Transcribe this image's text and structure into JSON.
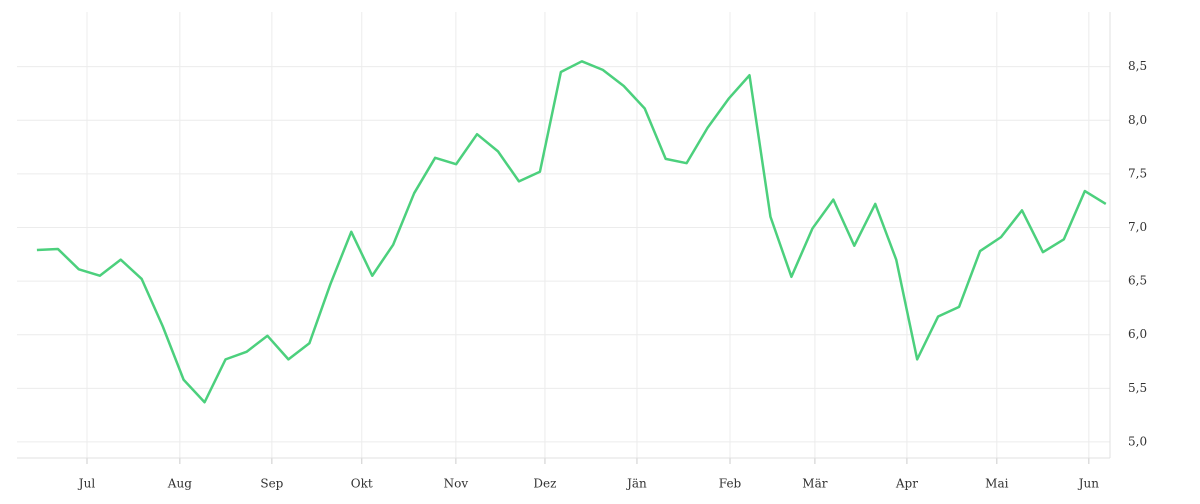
{
  "chart_data": {
    "type": "line",
    "color": "#4cd07d",
    "grid": true,
    "x": [
      0,
      1,
      2,
      3,
      4,
      5,
      6,
      7,
      8,
      9,
      10,
      11,
      12,
      13,
      14,
      15,
      16,
      17,
      18,
      19,
      20,
      21,
      22,
      23,
      24,
      25,
      26,
      27,
      28,
      29,
      30,
      31,
      32,
      33,
      34,
      35,
      36,
      37,
      38,
      39,
      40,
      41,
      42,
      43,
      44,
      45,
      46,
      47,
      48,
      49,
      50,
      51
    ],
    "values": [
      6.79,
      6.8,
      6.61,
      6.55,
      6.7,
      6.52,
      6.08,
      5.58,
      5.37,
      5.77,
      5.84,
      5.99,
      5.77,
      5.92,
      6.47,
      6.96,
      6.55,
      6.84,
      7.32,
      7.65,
      7.59,
      7.87,
      7.71,
      7.43,
      7.52,
      8.45,
      8.55,
      8.47,
      8.32,
      8.11,
      7.64,
      7.6,
      7.93,
      8.2,
      8.42,
      7.1,
      6.54,
      6.99,
      7.26,
      6.83,
      7.22,
      6.7,
      5.77,
      6.17,
      6.26,
      6.78,
      6.91,
      7.16,
      6.77,
      6.89,
      7.34,
      7.22
    ],
    "xlim": [
      -0.95,
      51.2
    ],
    "xticks": [
      {
        "value": 2.39,
        "label": "Jul"
      },
      {
        "value": 6.82,
        "label": "Aug"
      },
      {
        "value": 11.21,
        "label": "Sep"
      },
      {
        "value": 15.5,
        "label": "Okt"
      },
      {
        "value": 19.99,
        "label": "Nov"
      },
      {
        "value": 24.24,
        "label": "Dez"
      },
      {
        "value": 28.63,
        "label": "Jän"
      },
      {
        "value": 33.07,
        "label": "Feb"
      },
      {
        "value": 37.12,
        "label": "Mär"
      },
      {
        "value": 41.51,
        "label": "Apr"
      },
      {
        "value": 45.8,
        "label": "Mai"
      },
      {
        "value": 50.19,
        "label": "Jun"
      }
    ],
    "ylim": [
      4.85,
      9.01
    ],
    "yticks": [
      {
        "value": 5,
        "label": "5,0"
      },
      {
        "value": 5.5,
        "label": "5,5"
      },
      {
        "value": 6,
        "label": "6,0"
      },
      {
        "value": 6.5,
        "label": "6,5"
      },
      {
        "value": 7,
        "label": "7,0"
      },
      {
        "value": 7.5,
        "label": "7,5"
      },
      {
        "value": 8,
        "label": "8,0"
      },
      {
        "value": 8.5,
        "label": "8,5"
      }
    ]
  }
}
